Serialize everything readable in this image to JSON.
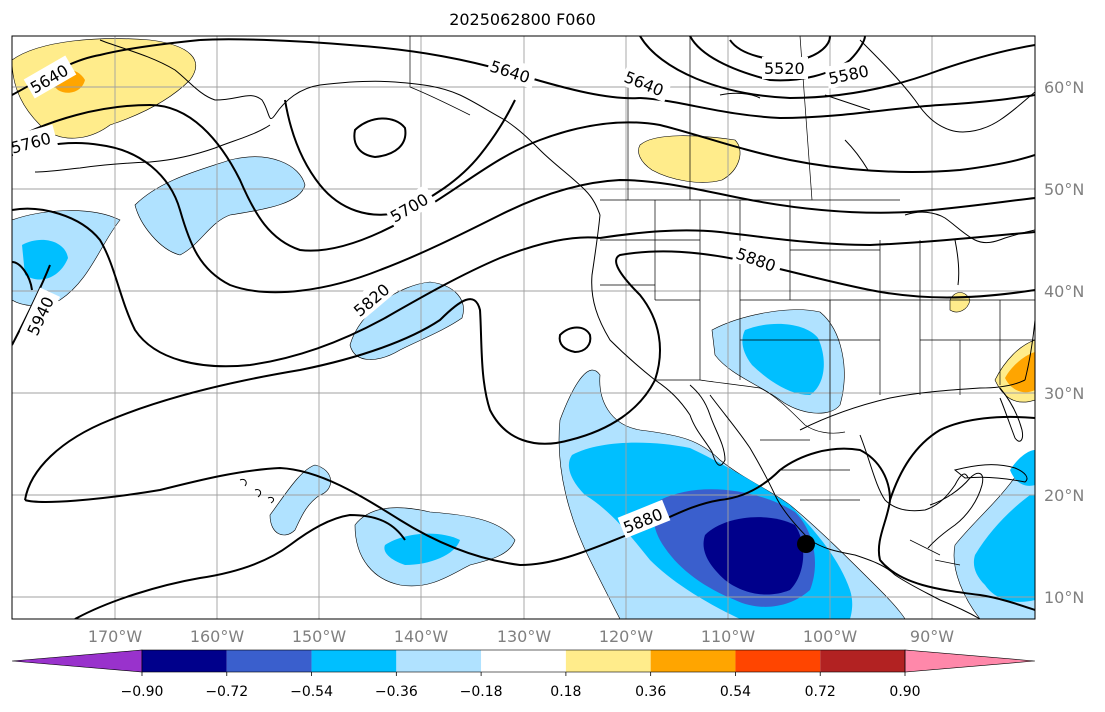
{
  "title": "2025062800 F060",
  "map": {
    "lon_ticks": [
      "170°W",
      "160°W",
      "150°W",
      "140°W",
      "130°W",
      "120°W",
      "110°W",
      "100°W",
      "90°W"
    ],
    "lat_ticks": [
      "60°N",
      "50°N",
      "40°N",
      "30°N",
      "20°N",
      "10°N"
    ],
    "contour_labels": [
      "5520",
      "5580",
      "5640",
      "5640",
      "5640",
      "5700",
      "5760",
      "5820",
      "5880",
      "5880",
      "5940"
    ],
    "colors": {
      "land_outline": "#000000",
      "grid": "#a0a0a0",
      "contour": "#000000"
    }
  },
  "colorbar": {
    "labels": [
      "−0.90",
      "−0.72",
      "−0.54",
      "−0.36",
      "−0.18",
      "0.18",
      "0.36",
      "0.54",
      "0.72",
      "0.90"
    ],
    "colors": [
      "#9932cc",
      "#00008b",
      "#3a5fcd",
      "#00bfff",
      "#b0e2ff",
      "#ffffff",
      "#ffec8b",
      "#ffa500",
      "#ff4500",
      "#b22222",
      "#ff88aa"
    ]
  },
  "marker": {
    "icon": "filled-circle-icon"
  }
}
